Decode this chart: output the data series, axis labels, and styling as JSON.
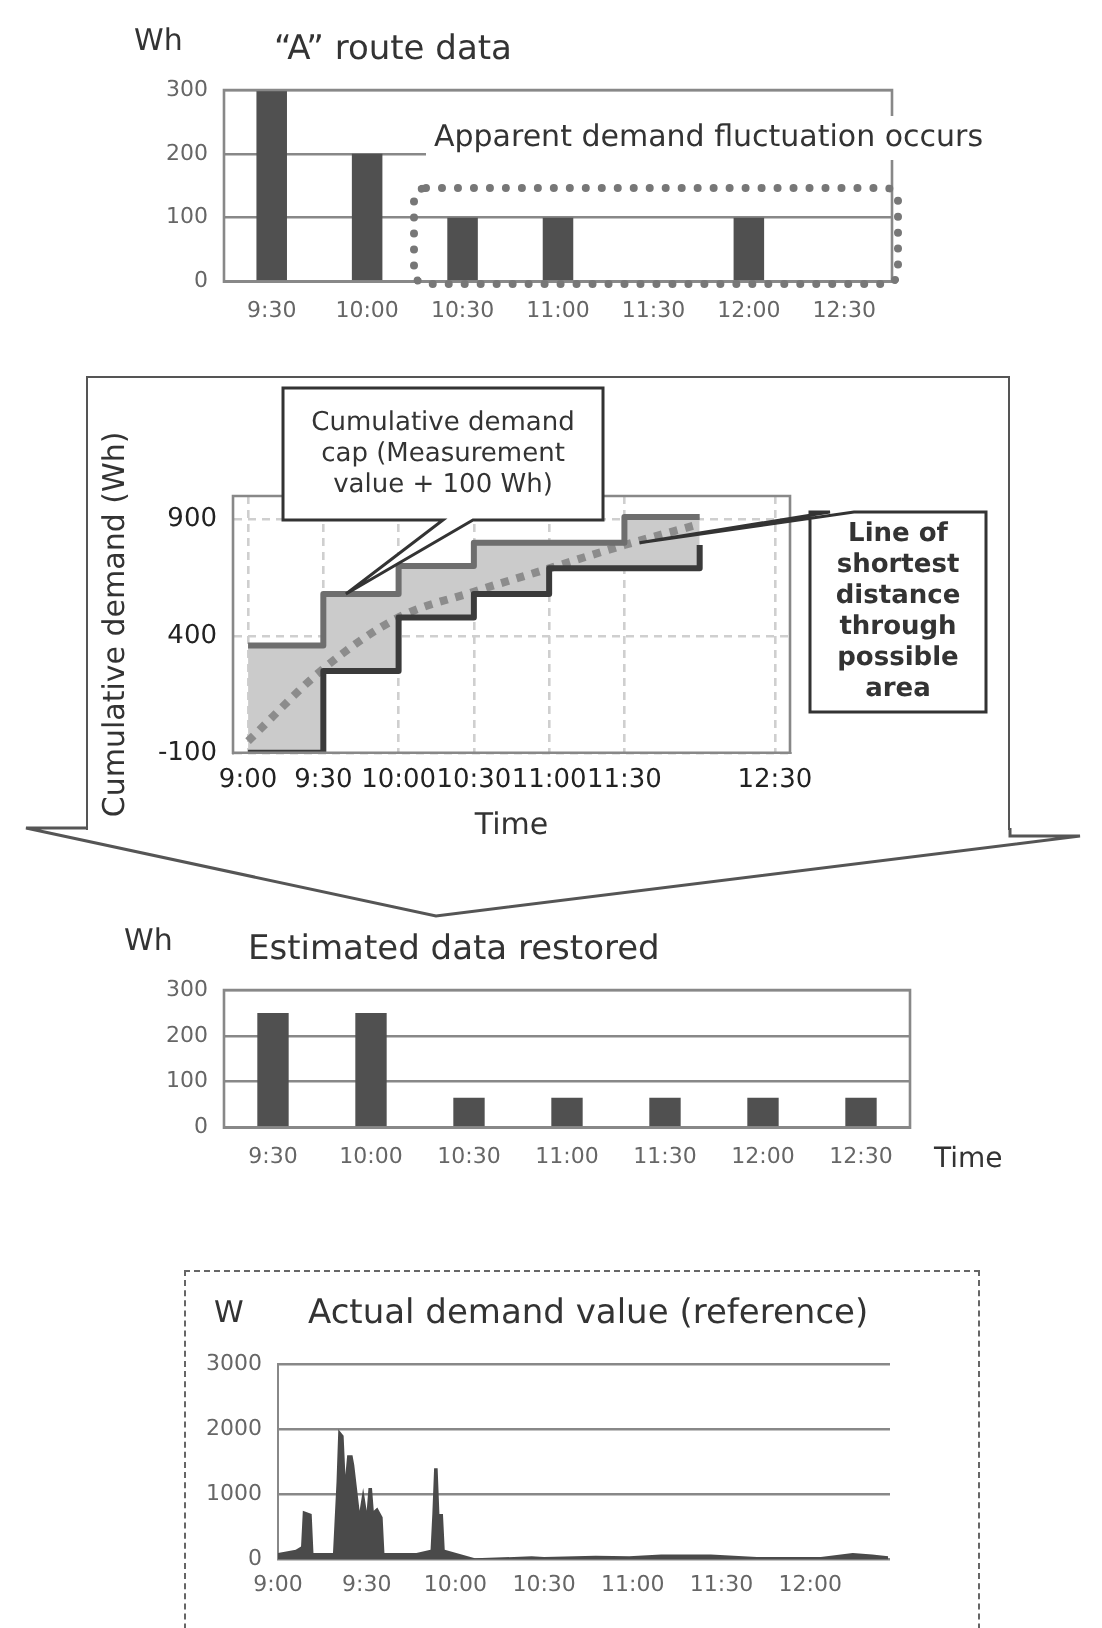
{
  "chart_data": [
    {
      "type": "bar",
      "title": "“A” route data",
      "ylabel": "Wh",
      "annotations": [
        "Apparent demand fluctuation occurs"
      ],
      "categories": [
        "9:30",
        "10:00",
        "10:30",
        "11:00",
        "11:30",
        "12:00",
        "12:30"
      ],
      "values": [
        300,
        200,
        100,
        100,
        0,
        100,
        0
      ],
      "color": "#505050",
      "ylim": [
        0,
        300
      ],
      "yticks": [
        0,
        100,
        200,
        300
      ],
      "grid": "y"
    },
    {
      "type": "step",
      "xlabel": "Time",
      "ylabel": "Cumulative demand (Wh)",
      "x": [
        9,
        9.5,
        10,
        10.5,
        11,
        11.5,
        12
      ],
      "series": [
        {
          "type": "step",
          "color": "#3a3a3a",
          "values": [
            -100,
            250,
            480,
            580,
            690,
            690,
            790
          ]
        },
        {
          "type": "step",
          "color": "#6e6e6e",
          "values": [
            360,
            580,
            700,
            800,
            800,
            910,
            910
          ]
        },
        {
          "type": "line",
          "color": "#8c8c8c",
          "line_style": "dotted",
          "values": [
            -50,
            260,
            480,
            590,
            690,
            790,
            880
          ],
          "lower": [
            -100,
            250,
            480,
            580,
            690,
            690,
            790
          ],
          "upper": [
            360,
            580,
            700,
            800,
            800,
            910,
            910
          ]
        }
      ],
      "annotations": [
        "Cumulative demand cap (Measurement value + 100 Wh)",
        "Line of shortest distance through possible area"
      ],
      "xlim": [
        8.9,
        12.6
      ],
      "xticks": [
        {
          "value": 9,
          "label": "9:00"
        },
        {
          "value": 9.5,
          "label": "9:30"
        },
        {
          "value": 10,
          "label": "10:00"
        },
        {
          "value": 10.5,
          "label": "10:30"
        },
        {
          "value": 11,
          "label": "11:00"
        },
        {
          "value": 11.5,
          "label": "11:30"
        },
        {
          "value": 12.5,
          "label": "12:30"
        }
      ],
      "ylim": [
        -100,
        1000
      ],
      "yticks": [
        -100,
        400,
        900
      ],
      "grid": true
    },
    {
      "type": "bar",
      "title": "Estimated data restored",
      "ylabel": "Wh",
      "xlabel": "Time",
      "categories": [
        "9:30",
        "10:00",
        "10:30",
        "11:00",
        "11:30",
        "12:00",
        "12:30"
      ],
      "values": [
        250,
        250,
        65,
        65,
        65,
        65,
        65
      ],
      "color": "#505050",
      "ylim": [
        0,
        300
      ],
      "yticks": [
        0,
        100,
        200,
        300
      ],
      "grid": "y"
    },
    {
      "type": "area",
      "title": "Actual demand value (reference)",
      "ylabel": "W",
      "color": "#4a4a4a",
      "x": [
        9.0,
        9.1,
        9.13,
        9.14,
        9.19,
        9.2,
        9.31,
        9.33,
        9.34,
        9.37,
        9.38,
        9.39,
        9.42,
        9.43,
        9.46,
        9.48,
        9.5,
        9.51,
        9.53,
        9.54,
        9.56,
        9.59,
        9.6,
        9.78,
        9.86,
        9.87,
        9.88,
        9.9,
        9.91,
        9.93,
        9.94,
        10.07,
        10.11,
        10.43,
        10.5,
        10.79,
        10.98,
        11.16,
        11.44,
        11.7,
        12.06,
        12.24,
        12.35,
        12.44
      ],
      "values": [
        100,
        150,
        200,
        750,
        700,
        100,
        100,
        1200,
        2000,
        1900,
        1300,
        1600,
        1600,
        1450,
        750,
        1100,
        750,
        1100,
        1100,
        750,
        800,
        650,
        100,
        100,
        150,
        700,
        1400,
        1400,
        700,
        700,
        150,
        50,
        20,
        50,
        40,
        60,
        50,
        80,
        80,
        40,
        40,
        100,
        80,
        50
      ],
      "xlim": [
        9,
        12.45
      ],
      "xticks": [
        {
          "value": 9,
          "label": "9:00"
        },
        {
          "value": 9.5,
          "label": "9:30"
        },
        {
          "value": 10,
          "label": "10:00"
        },
        {
          "value": 10.5,
          "label": "10:30"
        },
        {
          "value": 11,
          "label": "11:00"
        },
        {
          "value": 11.5,
          "label": "11:30"
        },
        {
          "value": 12,
          "label": "12:00"
        }
      ],
      "ylim": [
        0,
        3000
      ],
      "yticks": [
        0,
        1000,
        2000,
        3000
      ],
      "grid": "y"
    }
  ]
}
